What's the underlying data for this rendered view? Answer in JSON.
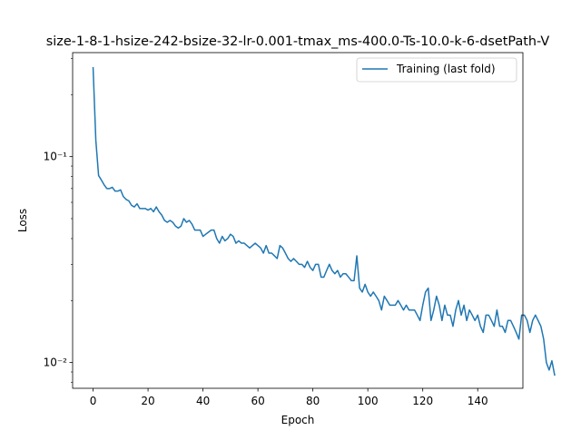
{
  "chart_data": {
    "type": "line",
    "title": "size-1-8-1-hsize-242-bsize-32-lr-0.001-tmax_ms-400.0-Ts-10.0-k-6-dsetPath-V",
    "xlabel": "Epoch",
    "ylabel": "Loss",
    "xlim": [
      -7.45,
      156.45
    ],
    "ylim": [
      0.0075,
      0.32
    ],
    "yscale": "log",
    "grid": false,
    "legend_position": "upper right",
    "x_ticks": [
      0,
      20,
      40,
      60,
      80,
      100,
      120,
      140
    ],
    "x_tick_labels": [
      "0",
      "20",
      "40",
      "60",
      "80",
      "100",
      "120",
      "140"
    ],
    "y_ticks": [
      0.01,
      0.1
    ],
    "y_tick_labels": [
      "10⁻²",
      "10⁻¹"
    ],
    "series": [
      {
        "name": "Training (last fold)",
        "color": "#1f77b4",
        "x_start": 0,
        "x_step": 1,
        "values": [
          0.27,
          0.12,
          0.081,
          0.077,
          0.073,
          0.07,
          0.07,
          0.071,
          0.068,
          0.068,
          0.069,
          0.064,
          0.062,
          0.061,
          0.058,
          0.057,
          0.059,
          0.056,
          0.056,
          0.056,
          0.055,
          0.056,
          0.054,
          0.057,
          0.054,
          0.052,
          0.049,
          0.048,
          0.049,
          0.048,
          0.046,
          0.045,
          0.046,
          0.05,
          0.048,
          0.049,
          0.047,
          0.044,
          0.044,
          0.044,
          0.041,
          0.042,
          0.043,
          0.044,
          0.044,
          0.04,
          0.038,
          0.041,
          0.039,
          0.04,
          0.042,
          0.041,
          0.038,
          0.039,
          0.038,
          0.038,
          0.037,
          0.036,
          0.037,
          0.038,
          0.037,
          0.036,
          0.034,
          0.037,
          0.034,
          0.034,
          0.033,
          0.032,
          0.037,
          0.036,
          0.034,
          0.032,
          0.031,
          0.032,
          0.031,
          0.03,
          0.03,
          0.029,
          0.031,
          0.029,
          0.028,
          0.03,
          0.03,
          0.026,
          0.026,
          0.028,
          0.03,
          0.028,
          0.027,
          0.028,
          0.026,
          0.027,
          0.027,
          0.026,
          0.025,
          0.025,
          0.033,
          0.023,
          0.022,
          0.024,
          0.022,
          0.021,
          0.022,
          0.021,
          0.02,
          0.018,
          0.021,
          0.02,
          0.019,
          0.019,
          0.019,
          0.02,
          0.019,
          0.018,
          0.019,
          0.018,
          0.018,
          0.018,
          0.017,
          0.016,
          0.019,
          0.022,
          0.023,
          0.016,
          0.018,
          0.021,
          0.019,
          0.016,
          0.019,
          0.017,
          0.017,
          0.015,
          0.018,
          0.02,
          0.017,
          0.019,
          0.016,
          0.018,
          0.017,
          0.016,
          0.017,
          0.015,
          0.014,
          0.017,
          0.017,
          0.016,
          0.015,
          0.018,
          0.015,
          0.015,
          0.014,
          0.016,
          0.016,
          0.015,
          0.014,
          0.013,
          0.017,
          0.017,
          0.016,
          0.014,
          0.016,
          0.017,
          0.016,
          0.015,
          0.013,
          0.01,
          0.0092,
          0.0102,
          0.0087
        ]
      }
    ]
  }
}
